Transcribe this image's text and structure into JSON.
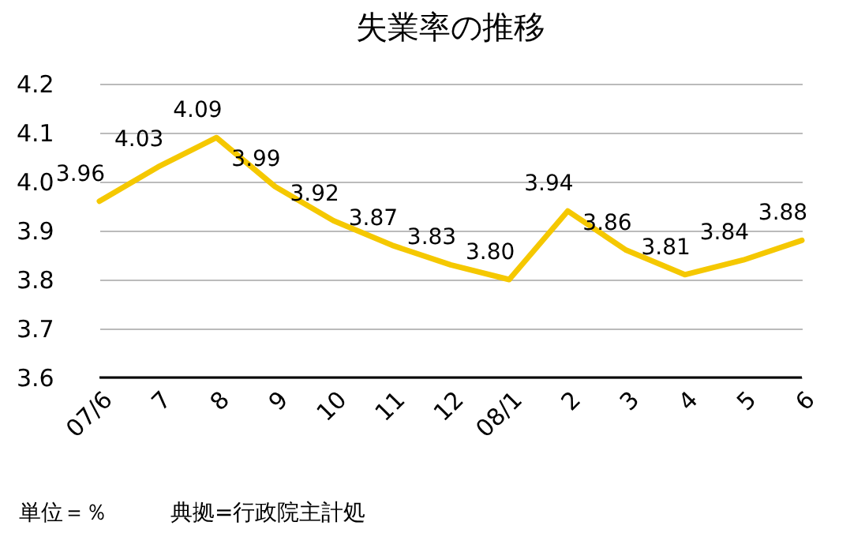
{
  "chart_data": {
    "type": "line",
    "title": "失業率の推移",
    "categories": [
      "07/6",
      "7",
      "8",
      "9",
      "10",
      "11",
      "12",
      "08/1",
      "2",
      "3",
      "4",
      "5",
      "6"
    ],
    "series": [
      {
        "color": "#f5c800",
        "values": [
          3.96,
          4.03,
          4.09,
          3.99,
          3.92,
          3.87,
          3.83,
          3.8,
          3.94,
          3.86,
          3.81,
          3.84,
          3.88
        ],
        "value_labels": [
          "3.96",
          "4.03",
          "4.09",
          "3.99",
          "3.92",
          "3.87",
          "3.83",
          "3.80",
          "3.94",
          "3.86",
          "3.81",
          "3.84",
          "3.88"
        ]
      }
    ],
    "ylim": [
      3.6,
      4.2
    ],
    "yticks": [
      {
        "value": 3.6,
        "label": "3.6"
      },
      {
        "value": 3.7,
        "label": "3.7"
      },
      {
        "value": 3.8,
        "label": "3.8"
      },
      {
        "value": 3.9,
        "label": "3.9"
      },
      {
        "value": 4,
        "label": "4.0"
      },
      {
        "value": 4.1,
        "label": "4.1"
      },
      {
        "value": 4.2,
        "label": "4.2"
      }
    ],
    "grid": "y",
    "marker": "none",
    "line_style": "solid",
    "annotations": [
      "単位＝％",
      "典拠=行政院主計処"
    ]
  }
}
